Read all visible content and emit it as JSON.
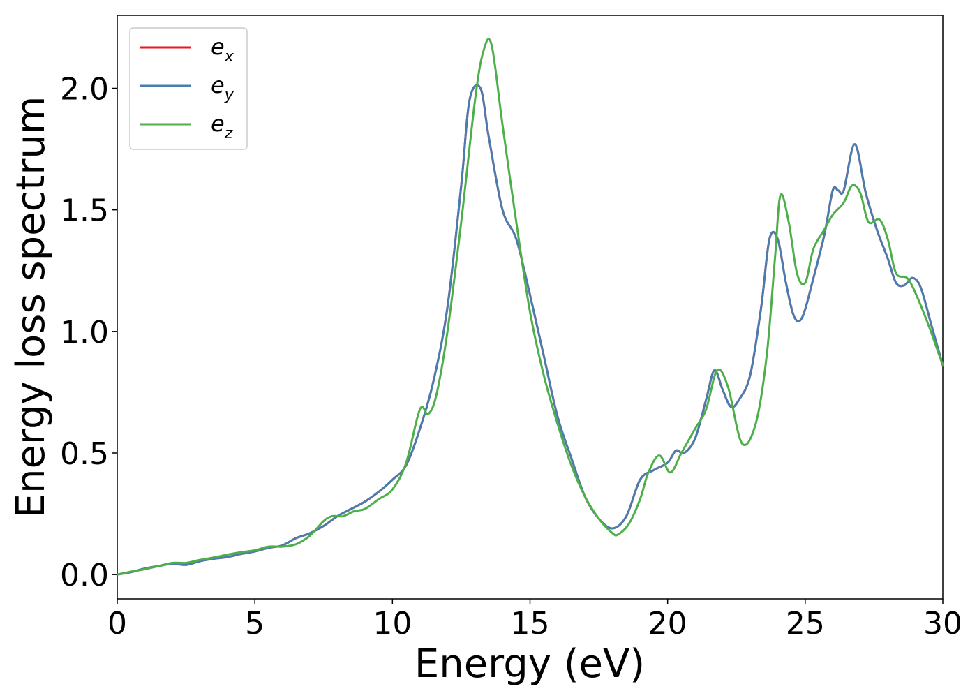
{
  "chart_data": {
    "type": "line",
    "title": "",
    "xlabel": "Energy (eV)",
    "ylabel": "Energy loss spectrum",
    "xlim": [
      0,
      30
    ],
    "ylim": [
      -0.1,
      2.3
    ],
    "xticks": [
      0,
      5,
      10,
      15,
      20,
      25,
      30
    ],
    "xtick_labels": [
      "0",
      "5",
      "10",
      "15",
      "20",
      "25",
      "30"
    ],
    "yticks": [
      0.0,
      0.5,
      1.0,
      1.5,
      2.0
    ],
    "ytick_labels": [
      "0.0",
      "0.5",
      "1.0",
      "1.5",
      "2.0"
    ],
    "grid": false,
    "legend_position": "top-left",
    "series": [
      {
        "name": "e",
        "sub": "x",
        "color": "#e41a1c",
        "x": [
          0,
          0.5,
          1,
          1.5,
          2,
          2.5,
          3,
          3.5,
          4,
          4.5,
          5,
          5.5,
          6,
          6.5,
          7,
          7.5,
          8,
          8.5,
          9,
          9.5,
          10,
          10.5,
          11,
          11.5,
          12,
          12.5,
          12.8,
          13.2,
          13.5,
          14,
          14.5,
          15,
          15.5,
          16,
          16.5,
          17,
          17.5,
          18,
          18.5,
          19,
          19.5,
          20,
          20.3,
          20.6,
          21,
          21.4,
          21.7,
          22,
          22.3,
          22.6,
          23,
          23.4,
          23.7,
          24,
          24.3,
          24.6,
          24.9,
          25.3,
          25.7,
          26,
          26.2,
          26.4,
          26.8,
          27.2,
          27.6,
          28,
          28.3,
          28.6,
          28.9,
          29.2,
          29.6,
          30
        ],
        "y": [
          0,
          0.01,
          0.025,
          0.035,
          0.045,
          0.04,
          0.055,
          0.065,
          0.072,
          0.085,
          0.095,
          0.11,
          0.12,
          0.15,
          0.17,
          0.2,
          0.24,
          0.27,
          0.3,
          0.34,
          0.39,
          0.45,
          0.6,
          0.8,
          1.1,
          1.6,
          1.95,
          2.0,
          1.8,
          1.5,
          1.38,
          1.15,
          0.9,
          0.65,
          0.48,
          0.32,
          0.23,
          0.19,
          0.24,
          0.39,
          0.43,
          0.46,
          0.51,
          0.5,
          0.56,
          0.72,
          0.84,
          0.76,
          0.69,
          0.72,
          0.82,
          1.1,
          1.38,
          1.38,
          1.2,
          1.06,
          1.06,
          1.22,
          1.4,
          1.58,
          1.58,
          1.58,
          1.77,
          1.57,
          1.42,
          1.3,
          1.2,
          1.19,
          1.22,
          1.18,
          1.02,
          0.86
        ]
      },
      {
        "name": "e",
        "sub": "y",
        "color": "#4a7cb0",
        "x": [
          0,
          0.5,
          1,
          1.5,
          2,
          2.5,
          3,
          3.5,
          4,
          4.5,
          5,
          5.5,
          6,
          6.5,
          7,
          7.5,
          8,
          8.5,
          9,
          9.5,
          10,
          10.5,
          11,
          11.5,
          12,
          12.5,
          12.8,
          13.2,
          13.5,
          14,
          14.5,
          15,
          15.5,
          16,
          16.5,
          17,
          17.5,
          18,
          18.5,
          19,
          19.5,
          20,
          20.3,
          20.6,
          21,
          21.4,
          21.7,
          22,
          22.3,
          22.6,
          23,
          23.4,
          23.7,
          24,
          24.3,
          24.6,
          24.9,
          25.3,
          25.7,
          26,
          26.2,
          26.4,
          26.8,
          27.2,
          27.6,
          28,
          28.3,
          28.6,
          28.9,
          29.2,
          29.6,
          30
        ],
        "y": [
          0,
          0.01,
          0.025,
          0.035,
          0.045,
          0.04,
          0.055,
          0.065,
          0.072,
          0.085,
          0.095,
          0.11,
          0.12,
          0.15,
          0.17,
          0.2,
          0.24,
          0.27,
          0.3,
          0.34,
          0.39,
          0.45,
          0.6,
          0.8,
          1.1,
          1.6,
          1.95,
          2.0,
          1.8,
          1.5,
          1.38,
          1.15,
          0.9,
          0.65,
          0.48,
          0.32,
          0.23,
          0.19,
          0.24,
          0.39,
          0.43,
          0.46,
          0.51,
          0.5,
          0.56,
          0.72,
          0.84,
          0.76,
          0.69,
          0.72,
          0.82,
          1.1,
          1.38,
          1.38,
          1.2,
          1.06,
          1.06,
          1.22,
          1.4,
          1.58,
          1.58,
          1.58,
          1.77,
          1.57,
          1.42,
          1.3,
          1.2,
          1.19,
          1.22,
          1.18,
          1.02,
          0.86
        ]
      },
      {
        "name": "e",
        "sub": "z",
        "color": "#4daf4a",
        "x": [
          0,
          0.5,
          1,
          1.5,
          2,
          2.5,
          3,
          3.5,
          4,
          4.5,
          5,
          5.5,
          6,
          6.5,
          7,
          7.5,
          7.8,
          8.2,
          8.6,
          9,
          9.5,
          10,
          10.5,
          11,
          11.3,
          11.6,
          12,
          12.5,
          13,
          13.3,
          13.6,
          14,
          14.5,
          15,
          15.5,
          16,
          16.5,
          17,
          17.5,
          18,
          18.2,
          18.6,
          19,
          19.3,
          19.7,
          20.1,
          20.5,
          21,
          21.4,
          21.8,
          22.2,
          22.7,
          23.2,
          23.6,
          23.9,
          24.1,
          24.4,
          24.7,
          25,
          25.3,
          25.7,
          26,
          26.4,
          26.7,
          27,
          27.3,
          27.7,
          28,
          28.3,
          28.7,
          29,
          29.5,
          30
        ],
        "y": [
          0,
          0.012,
          0.022,
          0.035,
          0.048,
          0.048,
          0.06,
          0.07,
          0.082,
          0.092,
          0.1,
          0.115,
          0.115,
          0.125,
          0.16,
          0.22,
          0.24,
          0.24,
          0.26,
          0.27,
          0.31,
          0.35,
          0.46,
          0.68,
          0.66,
          0.74,
          1.0,
          1.45,
          1.95,
          2.15,
          2.18,
          1.85,
          1.45,
          1.08,
          0.82,
          0.62,
          0.45,
          0.32,
          0.23,
          0.17,
          0.165,
          0.21,
          0.31,
          0.42,
          0.49,
          0.42,
          0.5,
          0.6,
          0.68,
          0.84,
          0.77,
          0.54,
          0.62,
          0.9,
          1.3,
          1.56,
          1.45,
          1.24,
          1.2,
          1.34,
          1.42,
          1.48,
          1.53,
          1.6,
          1.57,
          1.45,
          1.46,
          1.38,
          1.24,
          1.22,
          1.16,
          1.02,
          0.86
        ]
      }
    ]
  }
}
